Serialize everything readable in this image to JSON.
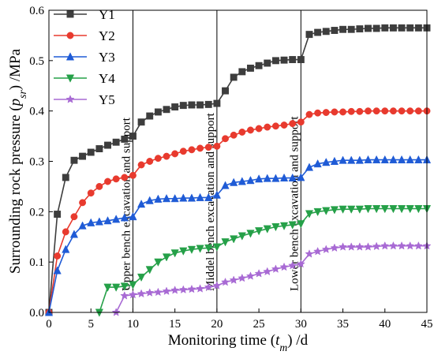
{
  "chart_data": {
    "type": "line",
    "xlabel": "Monitoring time (t_m) /d",
    "ylabel": "Surrounding rock pressure (p_sr) /MPa",
    "xlim": [
      0,
      45
    ],
    "ylim": [
      0,
      0.6
    ],
    "xticks": [
      0,
      5,
      10,
      15,
      20,
      25,
      30,
      35,
      40,
      45
    ],
    "yticks": [
      0.0,
      0.1,
      0.2,
      0.3,
      0.4,
      0.5,
      0.6
    ],
    "legend_position": "top-left",
    "grid": false,
    "vlines": [
      {
        "x": 10,
        "label": "Upper bench excavation and support"
      },
      {
        "x": 20,
        "label": "Middel bench excavation and support"
      },
      {
        "x": 30,
        "label": "Lower bench excavation and support"
      }
    ],
    "series": [
      {
        "name": "Y1",
        "color": "#3d3d3d",
        "marker": "square",
        "x": [
          0,
          1,
          2,
          3,
          4,
          5,
          6,
          7,
          8,
          9,
          10,
          11,
          12,
          13,
          14,
          15,
          16,
          17,
          18,
          19,
          20,
          21,
          22,
          23,
          24,
          25,
          26,
          27,
          28,
          29,
          30,
          31,
          32,
          33,
          34,
          35,
          36,
          37,
          38,
          39,
          40,
          41,
          42,
          43,
          44,
          45
        ],
        "y": [
          0,
          0.195,
          0.268,
          0.302,
          0.31,
          0.318,
          0.325,
          0.332,
          0.338,
          0.344,
          0.35,
          0.378,
          0.39,
          0.398,
          0.403,
          0.408,
          0.411,
          0.412,
          0.412,
          0.413,
          0.415,
          0.44,
          0.467,
          0.478,
          0.485,
          0.49,
          0.495,
          0.5,
          0.501,
          0.502,
          0.502,
          0.552,
          0.556,
          0.558,
          0.56,
          0.562,
          0.562,
          0.563,
          0.564,
          0.564,
          0.565,
          0.565,
          0.565,
          0.565,
          0.565,
          0.565
        ]
      },
      {
        "name": "Y2",
        "color": "#e83a2e",
        "marker": "circle",
        "x": [
          0,
          1,
          2,
          3,
          4,
          5,
          6,
          7,
          8,
          9,
          10,
          11,
          12,
          13,
          14,
          15,
          16,
          17,
          18,
          19,
          20,
          21,
          22,
          23,
          24,
          25,
          26,
          27,
          28,
          29,
          30,
          31,
          32,
          33,
          34,
          35,
          36,
          37,
          38,
          39,
          40,
          41,
          42,
          43,
          44,
          45
        ],
        "y": [
          0,
          0.112,
          0.16,
          0.19,
          0.218,
          0.237,
          0.25,
          0.26,
          0.265,
          0.268,
          0.272,
          0.293,
          0.3,
          0.306,
          0.31,
          0.315,
          0.32,
          0.323,
          0.326,
          0.328,
          0.33,
          0.345,
          0.352,
          0.358,
          0.362,
          0.365,
          0.368,
          0.37,
          0.372,
          0.375,
          0.378,
          0.393,
          0.396,
          0.397,
          0.398,
          0.398,
          0.399,
          0.399,
          0.4,
          0.4,
          0.4,
          0.4,
          0.4,
          0.4,
          0.4,
          0.4
        ]
      },
      {
        "name": "Y3",
        "color": "#1f5bd6",
        "marker": "triangle-up",
        "x": [
          0,
          1,
          2,
          3,
          4,
          5,
          6,
          7,
          8,
          9,
          10,
          11,
          12,
          13,
          14,
          15,
          16,
          17,
          18,
          19,
          20,
          21,
          22,
          23,
          24,
          25,
          26,
          27,
          28,
          29,
          30,
          31,
          32,
          33,
          34,
          35,
          36,
          37,
          38,
          39,
          40,
          41,
          42,
          43,
          44,
          45
        ],
        "y": [
          0,
          0.083,
          0.125,
          0.155,
          0.172,
          0.178,
          0.18,
          0.182,
          0.185,
          0.188,
          0.19,
          0.215,
          0.222,
          0.225,
          0.226,
          0.226,
          0.227,
          0.227,
          0.228,
          0.228,
          0.233,
          0.252,
          0.258,
          0.26,
          0.262,
          0.265,
          0.266,
          0.266,
          0.267,
          0.267,
          0.268,
          0.288,
          0.295,
          0.298,
          0.3,
          0.302,
          0.302,
          0.302,
          0.303,
          0.303,
          0.303,
          0.303,
          0.303,
          0.303,
          0.303,
          0.303
        ]
      },
      {
        "name": "Y4",
        "color": "#25a048",
        "marker": "triangle-down",
        "x": [
          6,
          7,
          8,
          9,
          10,
          11,
          12,
          13,
          14,
          15,
          16,
          17,
          18,
          19,
          20,
          21,
          22,
          23,
          24,
          25,
          26,
          27,
          28,
          29,
          30,
          31,
          32,
          33,
          34,
          35,
          36,
          37,
          38,
          39,
          40,
          41,
          42,
          43,
          44,
          45
        ],
        "y": [
          0,
          0.05,
          0.05,
          0.052,
          0.055,
          0.07,
          0.085,
          0.1,
          0.11,
          0.118,
          0.122,
          0.125,
          0.127,
          0.128,
          0.13,
          0.14,
          0.146,
          0.152,
          0.157,
          0.162,
          0.166,
          0.17,
          0.172,
          0.174,
          0.176,
          0.196,
          0.2,
          0.202,
          0.204,
          0.205,
          0.205,
          0.205,
          0.206,
          0.206,
          0.206,
          0.206,
          0.206,
          0.206,
          0.206,
          0.206
        ]
      },
      {
        "name": "Y5",
        "color": "#a86ad4",
        "marker": "star",
        "x": [
          8,
          9,
          10,
          11,
          12,
          13,
          14,
          15,
          16,
          17,
          18,
          19,
          20,
          21,
          22,
          23,
          24,
          25,
          26,
          27,
          28,
          29,
          30,
          31,
          32,
          33,
          34,
          35,
          36,
          37,
          38,
          39,
          40,
          41,
          42,
          43,
          44,
          45
        ],
        "y": [
          0,
          0.033,
          0.035,
          0.037,
          0.039,
          0.04,
          0.042,
          0.044,
          0.045,
          0.046,
          0.047,
          0.05,
          0.053,
          0.06,
          0.064,
          0.068,
          0.072,
          0.077,
          0.081,
          0.086,
          0.09,
          0.093,
          0.096,
          0.116,
          0.121,
          0.125,
          0.128,
          0.13,
          0.13,
          0.13,
          0.13,
          0.131,
          0.132,
          0.132,
          0.132,
          0.132,
          0.132,
          0.132
        ]
      }
    ]
  }
}
